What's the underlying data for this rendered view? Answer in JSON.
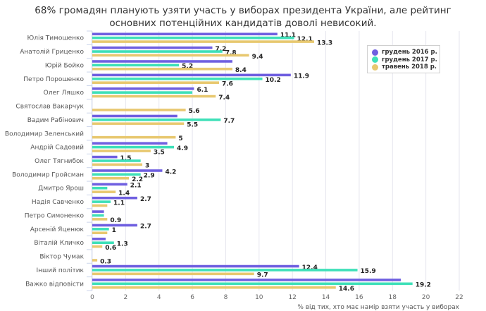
{
  "chart_data": {
    "type": "bar",
    "orientation": "horizontal",
    "title_lines": [
      "68% громадян планують узяти участь у виборах президента України, але рейтинг",
      "основних потенційних кандидатів доволі невисокий."
    ],
    "xlabel": "% від тих, хто має намір взяти участь у виборах",
    "ylabel": "",
    "xlim": [
      0,
      22
    ],
    "xticks": [
      0,
      2,
      4,
      6,
      8,
      10,
      12,
      14,
      16,
      18,
      20,
      22
    ],
    "grid": true,
    "legend_position": "top-right",
    "categories": [
      "Юлія Тимошенко",
      "Анатолій Гриценко",
      "Юрій Бойко",
      "Петро Порошенко",
      "Олег Ляшко",
      "Святослав Вакарчук",
      "Вадим Рабінович",
      "Володимир Зеленський",
      "Андрій Садовий",
      "Олег Тягнибок",
      "Володимир Гройсман",
      "Дмитро Ярош",
      "Надія Савченко",
      "Петро Симоненко",
      "Арсеній Яценюк",
      "Віталій Кличко",
      "Віктор Чумак",
      "Інший політик",
      "Важко відповісти"
    ],
    "series": [
      {
        "name": "грудень 2016 р.",
        "color": "#6f5fe0",
        "values": [
          11.1,
          7.2,
          8.4,
          11.9,
          6.1,
          null,
          5.1,
          null,
          4.5,
          1.5,
          4.2,
          2.1,
          2.7,
          0.7,
          2.7,
          0.8,
          null,
          12.4,
          18.5
        ],
        "labels": [
          "11.1",
          "7.2",
          "",
          "11.9",
          "6.1",
          "",
          "",
          "",
          "",
          "1.5",
          "4.2",
          "2.1",
          "2.7",
          "",
          "2.7",
          "",
          "",
          "12.4",
          ""
        ]
      },
      {
        "name": "грудень 2017 р.",
        "color": "#3ee0b8",
        "values": [
          12.1,
          7.8,
          5.2,
          10.2,
          6.0,
          null,
          7.7,
          null,
          4.9,
          2.9,
          2.9,
          0.9,
          1.1,
          0.7,
          1.0,
          1.3,
          null,
          15.9,
          19.2
        ],
        "labels": [
          "12.1",
          "7.8",
          "5.2",
          "10.2",
          "",
          "",
          "7.7",
          "",
          "4.9",
          "",
          "2.9",
          "",
          "1.1",
          "",
          "1",
          "1.3",
          "",
          "15.9",
          "19.2"
        ]
      },
      {
        "name": "травень 2018 р.",
        "color": "#e8c870",
        "values": [
          13.3,
          9.4,
          8.4,
          7.6,
          7.4,
          5.6,
          5.5,
          5.0,
          3.5,
          3.0,
          2.2,
          1.4,
          0.9,
          0.9,
          0.9,
          0.6,
          0.3,
          9.7,
          14.6
        ],
        "labels": [
          "13.3",
          "9.4",
          "8.4",
          "7.6",
          "7.4",
          "5.6",
          "5.5",
          "5",
          "3.5",
          "3",
          "2.2",
          "1.4",
          "",
          "0.9",
          "",
          "0.6",
          "0.3",
          "9.7",
          "14.6"
        ]
      }
    ]
  }
}
